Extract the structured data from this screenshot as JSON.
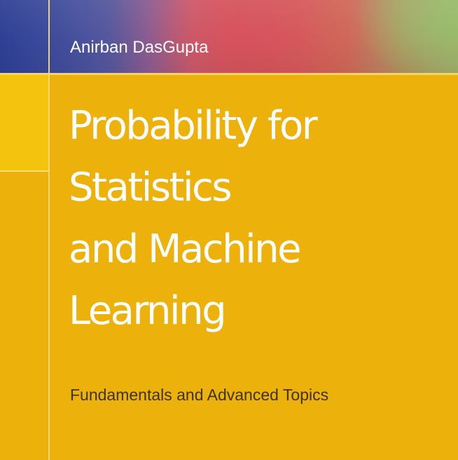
{
  "book": {
    "author": "Anirban DasGupta",
    "title_lines": [
      "Probability for",
      "Statistics",
      "and Machine",
      "Learning"
    ],
    "subtitle": "Fundamentals and Advanced Topics"
  },
  "colors": {
    "cover_background": "#ecb10b",
    "band_blue": "#2f3f93",
    "band_red": "#d6545b",
    "band_green": "#a6aa6a",
    "title_text": "#ffffff",
    "subtitle_text": "#3f3414"
  }
}
